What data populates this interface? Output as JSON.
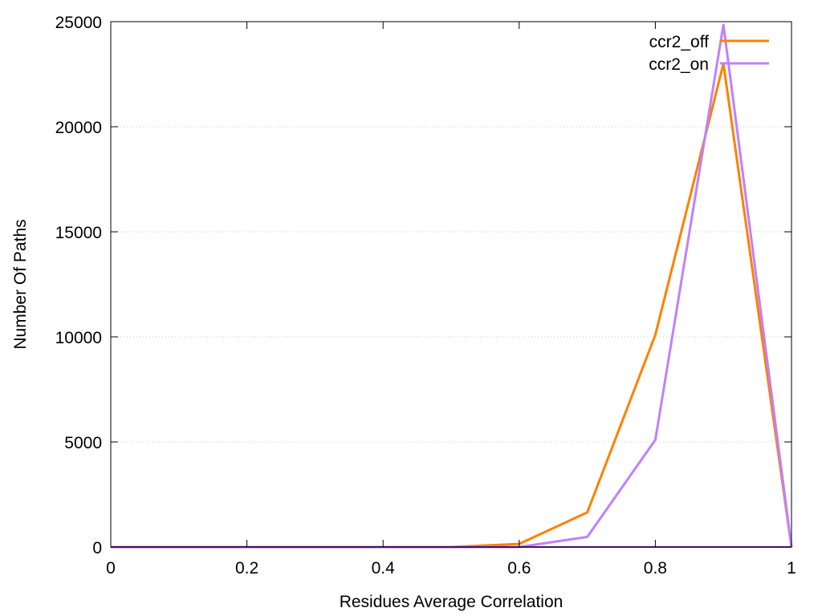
{
  "chart_data": {
    "type": "line",
    "title": "",
    "xlabel": "Residues Average Correlation",
    "ylabel": "Number Of Paths",
    "xlim": [
      0,
      1
    ],
    "ylim": [
      0,
      25000
    ],
    "xticks": [
      0,
      0.2,
      0.4,
      0.6,
      0.8,
      1
    ],
    "xtick_labels": [
      "0",
      "0.2",
      "0.4",
      "0.6",
      "0.8",
      "1"
    ],
    "yticks": [
      0,
      5000,
      10000,
      15000,
      20000,
      25000
    ],
    "ytick_labels": [
      "0",
      "5000",
      "10000",
      "15000",
      "20000",
      "25000"
    ],
    "grid": "horizontal dotted",
    "legend_position": "top-right",
    "x": [
      0,
      0.1,
      0.2,
      0.3,
      0.4,
      0.5,
      0.6,
      0.7,
      0.8,
      0.9,
      1.0
    ],
    "series": [
      {
        "name": "ccr2_off",
        "color": "#ff8000",
        "values": [
          0,
          0,
          0,
          0,
          0,
          0,
          150,
          1650,
          10100,
          23000,
          0
        ]
      },
      {
        "name": "ccr2_on",
        "color": "#c080ff",
        "values": [
          0,
          0,
          0,
          0,
          0,
          0,
          0,
          480,
          5100,
          24850,
          0
        ]
      }
    ],
    "baseline_color": "#7b2cbf"
  }
}
